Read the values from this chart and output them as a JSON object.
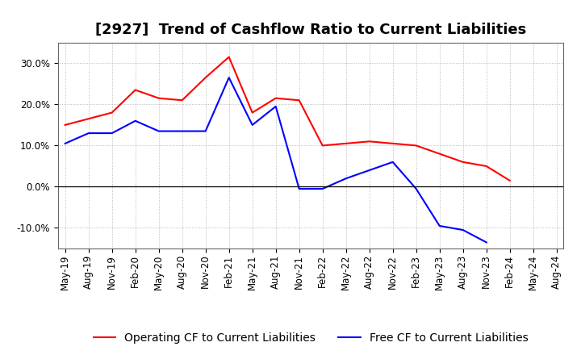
{
  "title": "[2927]  Trend of Cashflow Ratio to Current Liabilities",
  "x_labels": [
    "May-19",
    "Aug-19",
    "Nov-19",
    "Feb-20",
    "May-20",
    "Aug-20",
    "Nov-20",
    "Feb-21",
    "May-21",
    "Aug-21",
    "Nov-21",
    "Feb-22",
    "May-22",
    "Aug-22",
    "Nov-22",
    "Feb-23",
    "May-23",
    "Aug-23",
    "Nov-23",
    "Feb-24",
    "May-24",
    "Aug-24"
  ],
  "operating_cf": [
    15.0,
    16.5,
    18.0,
    23.5,
    21.5,
    21.0,
    26.5,
    31.5,
    18.0,
    21.5,
    21.0,
    10.0,
    10.5,
    11.0,
    10.5,
    10.0,
    8.0,
    6.0,
    5.0,
    1.5,
    null,
    null
  ],
  "free_cf": [
    10.5,
    13.0,
    13.0,
    16.0,
    13.5,
    13.5,
    13.5,
    26.5,
    15.0,
    19.5,
    -0.5,
    -0.5,
    2.0,
    4.0,
    6.0,
    -0.5,
    -9.5,
    -10.5,
    -13.5,
    null,
    null,
    null
  ],
  "ylim": [
    -15,
    35
  ],
  "yticks": [
    -10.0,
    0.0,
    10.0,
    20.0,
    30.0
  ],
  "operating_color": "#FF0000",
  "free_color": "#0000FF",
  "background_color": "#FFFFFF",
  "grid_color": "#AAAAAA",
  "legend_op": "Operating CF to Current Liabilities",
  "legend_free": "Free CF to Current Liabilities",
  "title_fontsize": 13,
  "tick_fontsize": 8.5,
  "legend_fontsize": 10
}
